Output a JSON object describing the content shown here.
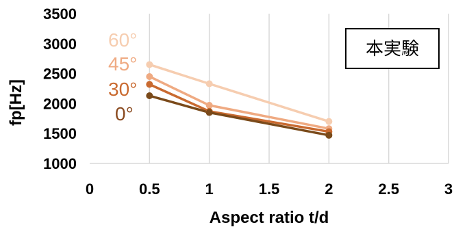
{
  "chart_data": {
    "type": "line",
    "title": "",
    "xlabel": "Aspect ratio t/d",
    "ylabel": "fp[Hz]",
    "xlim": [
      0,
      3
    ],
    "ylim": [
      1000,
      3500
    ],
    "x_ticks": [
      "0",
      "0.5",
      "1",
      "1.5",
      "2",
      "2.5",
      "3"
    ],
    "y_ticks": [
      "1000",
      "1500",
      "2000",
      "2500",
      "3000",
      "3500"
    ],
    "x": [
      0.5,
      1,
      2
    ],
    "grid": "vertical",
    "legend_box": "本実験",
    "series": [
      {
        "name": "60°",
        "values": [
          2650,
          2330,
          1700
        ],
        "color": "#f6cdb0"
      },
      {
        "name": "45°",
        "values": [
          2450,
          1970,
          1580
        ],
        "color": "#efaa82"
      },
      {
        "name": "30°",
        "values": [
          2320,
          1870,
          1530
        ],
        "color": "#c96a30"
      },
      {
        "name": "0°",
        "values": [
          2130,
          1850,
          1470
        ],
        "color": "#7a4a1a"
      }
    ],
    "series_label_colors": [
      "#f6cdb0",
      "#efaa82",
      "#c96a30",
      "#8a4a1f"
    ]
  }
}
